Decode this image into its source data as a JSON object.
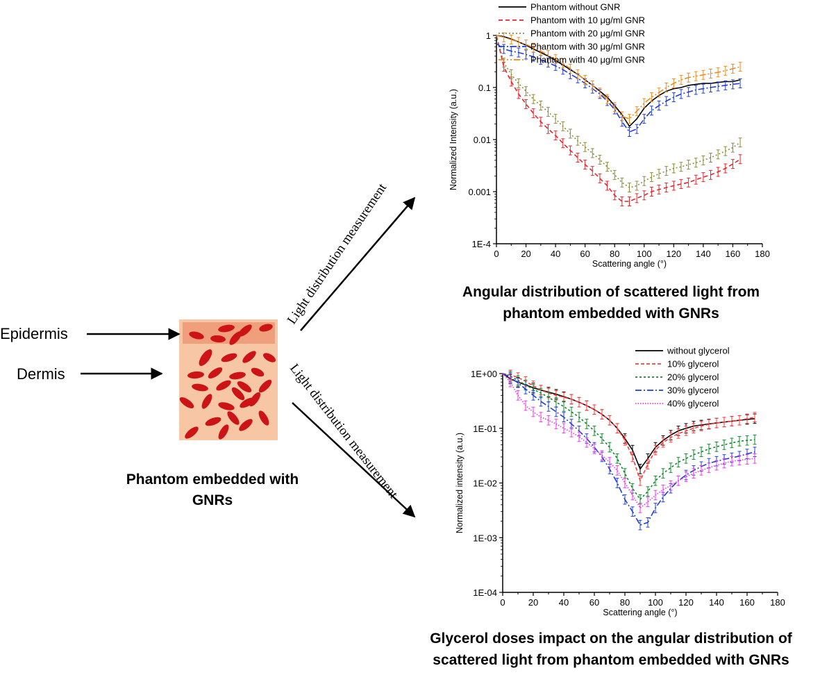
{
  "left": {
    "epidermis_label": "Epidermis",
    "dermis_label": "Dermis",
    "phantom_caption_line1": "Phantom embedded with",
    "phantom_caption_line2": "GNRs",
    "arrow_label_top": "Light distribution measurement",
    "arrow_label_bottom": "Light distribution measurement"
  },
  "colors": {
    "phantom_bg": "#f7c6a4",
    "epidermis_band": "#ef9f7c",
    "gnr_red": "#cc1416"
  },
  "chart_data": [
    {
      "type": "line",
      "caption_line1": "Angular distribution of scattered light from",
      "caption_line2": "phantom embedded with GNRs",
      "xlabel": "Scattering angle (°)",
      "ylabel": "Normalized Intensity (a.u.)",
      "xlim": [
        0,
        180
      ],
      "ylim": [
        0.0001,
        1
      ],
      "yscale": "log",
      "xticks": [
        0,
        20,
        40,
        60,
        80,
        100,
        120,
        140,
        160,
        180
      ],
      "yticks": [
        {
          "value": 1,
          "label": "1"
        },
        {
          "value": 0.1,
          "label": "0.1"
        },
        {
          "value": 0.01,
          "label": "0.01"
        },
        {
          "value": 0.001,
          "label": "0.001"
        },
        {
          "value": 0.0001,
          "label": "1E-4"
        }
      ],
      "legend_position": "top-right",
      "x": [
        0,
        5,
        10,
        15,
        20,
        25,
        30,
        35,
        40,
        45,
        50,
        55,
        60,
        65,
        70,
        75,
        80,
        85,
        90,
        95,
        100,
        105,
        110,
        115,
        120,
        125,
        130,
        135,
        140,
        145,
        150,
        155,
        160,
        165
      ],
      "series": [
        {
          "name": "Phantom without GNR",
          "color": "#000000",
          "dash": "",
          "error_bars": false,
          "values": [
            1,
            0.95,
            0.85,
            0.75,
            0.65,
            0.55,
            0.47,
            0.4,
            0.33,
            0.27,
            0.22,
            0.18,
            0.14,
            0.11,
            0.085,
            0.065,
            0.045,
            0.03,
            0.018,
            0.025,
            0.04,
            0.055,
            0.07,
            0.085,
            0.095,
            0.1,
            0.11,
            0.115,
            0.12,
            0.12,
            0.125,
            0.13,
            0.13,
            0.14
          ]
        },
        {
          "name": "Phantom with 10 μg/ml GNR",
          "color": "#e8232a",
          "dash": "6,4",
          "error_bars": true,
          "values": [
            1,
            0.25,
            0.13,
            0.075,
            0.048,
            0.032,
            0.022,
            0.016,
            0.012,
            0.0085,
            0.0062,
            0.0045,
            0.0033,
            0.0025,
            0.0018,
            0.0013,
            0.00085,
            0.00065,
            0.00065,
            0.00075,
            0.00085,
            0.001,
            0.0011,
            0.0012,
            0.0013,
            0.0014,
            0.0015,
            0.0017,
            0.0019,
            0.0021,
            0.0024,
            0.0028,
            0.0034,
            0.0042
          ]
        },
        {
          "name": "Phantom with 20 μg/ml GNR",
          "color": "#8b8b3a",
          "dash": "2,3",
          "error_bars": true,
          "values": [
            1,
            0.3,
            0.18,
            0.12,
            0.085,
            0.06,
            0.045,
            0.034,
            0.025,
            0.018,
            0.013,
            0.0095,
            0.0072,
            0.0055,
            0.0041,
            0.003,
            0.0021,
            0.0015,
            0.0012,
            0.0013,
            0.0016,
            0.0019,
            0.0022,
            0.0025,
            0.0028,
            0.003,
            0.0033,
            0.0036,
            0.004,
            0.0045,
            0.0052,
            0.006,
            0.007,
            0.0088
          ]
        },
        {
          "name": "Phantom with 30 μg/ml GNR",
          "color": "#1f3fd6",
          "dash": "9,3,2,3",
          "error_bars": true,
          "values": [
            0.7,
            0.55,
            0.5,
            0.47,
            0.43,
            0.39,
            0.34,
            0.3,
            0.26,
            0.22,
            0.18,
            0.15,
            0.12,
            0.095,
            0.075,
            0.055,
            0.038,
            0.022,
            0.014,
            0.016,
            0.025,
            0.036,
            0.045,
            0.055,
            0.065,
            0.075,
            0.082,
            0.09,
            0.095,
            0.1,
            0.105,
            0.11,
            0.115,
            0.12
          ]
        },
        {
          "name": "Phantom with 40 μg/ml GNR",
          "color": "#f08a1c",
          "dash": "9,3,2,3,2,3",
          "error_bars": true,
          "values": [
            1,
            0.92,
            0.83,
            0.75,
            0.67,
            0.58,
            0.5,
            0.42,
            0.35,
            0.29,
            0.23,
            0.18,
            0.14,
            0.11,
            0.08,
            0.06,
            0.042,
            0.028,
            0.025,
            0.035,
            0.05,
            0.065,
            0.08,
            0.1,
            0.12,
            0.14,
            0.155,
            0.165,
            0.175,
            0.185,
            0.195,
            0.21,
            0.23,
            0.25
          ]
        }
      ]
    },
    {
      "type": "line",
      "caption_line1": "Glycerol doses impact on the angular distribution of",
      "caption_line2": "scattered light from phantom embedded with GNRs",
      "xlabel": "Scattering angle (°)",
      "ylabel": "Normalized intensity (a.u.)",
      "xlim": [
        0,
        180
      ],
      "ylim": [
        0.0001,
        1
      ],
      "yscale": "log",
      "xticks": [
        0,
        20,
        40,
        60,
        80,
        100,
        120,
        140,
        160,
        180
      ],
      "yticks": [
        {
          "value": 1,
          "label": "1E+00"
        },
        {
          "value": 0.1,
          "label": "1E-01"
        },
        {
          "value": 0.01,
          "label": "1E-02"
        },
        {
          "value": 0.001,
          "label": "1E-03"
        },
        {
          "value": 0.0001,
          "label": "1E-04"
        }
      ],
      "legend_position": "top-right",
      "x": [
        0,
        5,
        10,
        15,
        20,
        25,
        30,
        35,
        40,
        45,
        50,
        55,
        60,
        65,
        70,
        75,
        80,
        85,
        90,
        95,
        100,
        105,
        110,
        115,
        120,
        125,
        130,
        135,
        140,
        145,
        150,
        155,
        160,
        165
      ],
      "series": [
        {
          "name": "without glycerol",
          "color": "#000000",
          "dash": "",
          "error_bars": true,
          "values": [
            1,
            0.8,
            0.7,
            0.62,
            0.55,
            0.5,
            0.46,
            0.42,
            0.38,
            0.34,
            0.3,
            0.26,
            0.22,
            0.18,
            0.14,
            0.1,
            0.065,
            0.04,
            0.018,
            0.028,
            0.045,
            0.06,
            0.075,
            0.09,
            0.1,
            0.11,
            0.115,
            0.12,
            0.125,
            0.13,
            0.135,
            0.14,
            0.145,
            0.15
          ]
        },
        {
          "name": "10% glycerol",
          "color": "#ff3b3b",
          "dash": "5,3",
          "error_bars": true,
          "values": [
            1,
            0.95,
            0.85,
            0.72,
            0.6,
            0.5,
            0.44,
            0.4,
            0.37,
            0.34,
            0.3,
            0.26,
            0.22,
            0.18,
            0.14,
            0.1,
            0.06,
            0.03,
            0.011,
            0.022,
            0.04,
            0.055,
            0.068,
            0.08,
            0.09,
            0.1,
            0.11,
            0.118,
            0.125,
            0.13,
            0.135,
            0.14,
            0.15,
            0.16
          ]
        },
        {
          "name": "20% glycerol",
          "color": "#0c8a2a",
          "dash": "3,3",
          "error_bars": true,
          "values": [
            1,
            0.9,
            0.75,
            0.62,
            0.52,
            0.44,
            0.37,
            0.3,
            0.25,
            0.2,
            0.16,
            0.12,
            0.09,
            0.065,
            0.045,
            0.028,
            0.015,
            0.008,
            0.005,
            0.007,
            0.011,
            0.015,
            0.019,
            0.024,
            0.028,
            0.033,
            0.037,
            0.042,
            0.046,
            0.05,
            0.054,
            0.058,
            0.06,
            0.062
          ]
        },
        {
          "name": "30% glycerol",
          "color": "#1f3fd6",
          "dash": "9,3,2,3",
          "error_bars": true,
          "values": [
            1,
            0.85,
            0.68,
            0.52,
            0.4,
            0.31,
            0.25,
            0.2,
            0.16,
            0.12,
            0.09,
            0.065,
            0.045,
            0.03,
            0.018,
            0.01,
            0.005,
            0.003,
            0.0017,
            0.0019,
            0.0035,
            0.0055,
            0.008,
            0.011,
            0.014,
            0.017,
            0.02,
            0.023,
            0.025,
            0.027,
            0.029,
            0.031,
            0.034,
            0.037
          ]
        },
        {
          "name": "40% glycerol",
          "color": "#e83ae8",
          "dash": "1.5,2",
          "error_bars": true,
          "values": [
            1,
            0.7,
            0.4,
            0.26,
            0.2,
            0.16,
            0.14,
            0.12,
            0.1,
            0.085,
            0.07,
            0.055,
            0.042,
            0.032,
            0.024,
            0.017,
            0.01,
            0.006,
            0.0035,
            0.0045,
            0.006,
            0.0075,
            0.009,
            0.011,
            0.013,
            0.015,
            0.017,
            0.019,
            0.021,
            0.023,
            0.025,
            0.026,
            0.027,
            0.028
          ]
        }
      ]
    }
  ]
}
